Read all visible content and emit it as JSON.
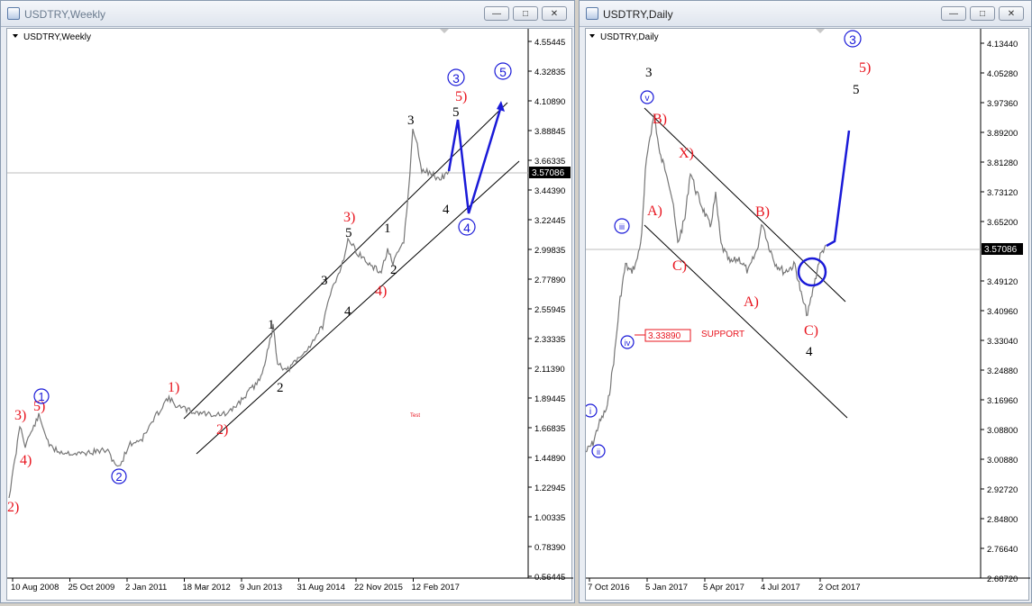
{
  "left": {
    "window_title": "USDTRY,Weekly",
    "symbol_label": "USDTRY,Weekly",
    "price_tag": "3.57086",
    "y_ticks": [
      "4.55445",
      "4.32835",
      "4.10890",
      "3.88845",
      "3.66335",
      "3.44390",
      "3.22445",
      "2.99835",
      "2.77890",
      "2.55945",
      "2.33335",
      "2.11390",
      "1.89445",
      "1.66835",
      "1.44890",
      "1.22945",
      "1.00335",
      "0.78390",
      "0.56445"
    ],
    "x_ticks": [
      "10 Aug 2008",
      "25 Oct 2009",
      "2 Jan 2011",
      "18 Mar 2012",
      "9 Jun 2013",
      "31 Aug 2014",
      "22 Nov 2015",
      "12 Feb 2017"
    ],
    "test_label": "Test",
    "labels_red": {
      "w1": "1)",
      "w2": "2)",
      "w3": "3)",
      "w4": "4)",
      "w5": "5)",
      "w3b": "3)",
      "w4b": "4)",
      "w5b": "5)",
      "w2b": "2)"
    },
    "labels_black": {
      "a1": "1",
      "a2": "2",
      "a3": "3",
      "a4": "4",
      "a5": "5",
      "b1": "1",
      "b2": "2",
      "b3": "3",
      "b4": "4",
      "b5": "5"
    },
    "labels_circle": {
      "c1": "1",
      "c2": "2",
      "c3": "3",
      "c4": "4",
      "c5": "5"
    }
  },
  "right": {
    "window_title": "USDTRY,Daily",
    "symbol_label": "USDTRY,Daily",
    "price_tag": "3.57086",
    "y_ticks": [
      "4.13440",
      "4.05280",
      "3.97360",
      "3.89200",
      "3.81280",
      "3.73120",
      "3.65200",
      "3.57086",
      "3.49120",
      "3.40960",
      "3.33040",
      "3.24880",
      "3.16960",
      "3.08800",
      "3.00880",
      "2.92720",
      "2.84800",
      "2.76640",
      "2.68720"
    ],
    "x_ticks": [
      "7 Oct 2016",
      "5 Jan 2017",
      "5 Apr 2017",
      "4 Jul 2017",
      "2 Oct 2017"
    ],
    "support_value": "3.33890",
    "support_label": "SUPPORT",
    "labels_red": {
      "B1": "B)",
      "X": "X)",
      "A1": "A)",
      "C1": "C)",
      "B2": "B)",
      "A2": "A)",
      "C2": "C)",
      "five": "5)"
    },
    "labels_black": {
      "three": "3",
      "four": "4",
      "five": "5"
    },
    "labels_circle": {
      "i": "i",
      "ii": "ii",
      "iii": "iii",
      "iv": "iv",
      "v": "v",
      "three": "3"
    }
  },
  "colors": {
    "red": "#e8141e",
    "blue": "#1a1ad8",
    "line": "#777777",
    "grid": "#bdbdbd"
  }
}
